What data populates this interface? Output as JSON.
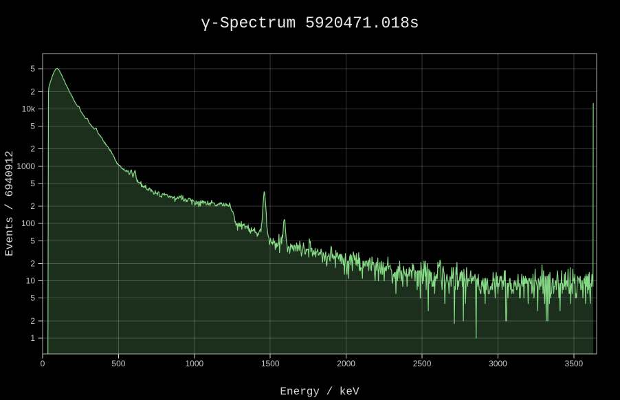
{
  "window": {
    "background": "#000000"
  },
  "chart_data": {
    "type": "area",
    "title": "γ-Spectrum 5920471.018s",
    "xlabel": "Energy / keV",
    "ylabel": "Events / 6940912",
    "x_scale": "linear",
    "y_scale": "log",
    "grid": true,
    "legend": "none",
    "xlim": [
      0,
      3650
    ],
    "ylim": [
      0.53,
      92000
    ],
    "x_ticks": [
      0,
      500,
      1000,
      1500,
      2000,
      2500,
      3000,
      3500
    ],
    "x_tick_labels": [
      "0",
      "500",
      "1000",
      "1500",
      "2000",
      "2500",
      "3000",
      "3500"
    ],
    "y_ticks": [
      1,
      2,
      5,
      10,
      20,
      50,
      100,
      200,
      500,
      1000,
      2000,
      5000,
      10000,
      20000,
      50000
    ],
    "y_tick_labels": [
      "1",
      "2",
      "5",
      "10",
      "2",
      "5",
      "100",
      "2",
      "5",
      "1000",
      "2",
      "5",
      "10k",
      "2",
      "5"
    ],
    "series": [
      {
        "name": "gamma-spectrum",
        "start_kev": 35,
        "end_kev": 3626,
        "channel_width_kev": 3.5,
        "envelope_points": [
          [
            35,
            0.53
          ],
          [
            37,
            14000
          ],
          [
            39,
            23000
          ],
          [
            44,
            25500
          ],
          [
            52,
            30000
          ],
          [
            62,
            36000
          ],
          [
            72,
            42500
          ],
          [
            82,
            47500
          ],
          [
            92,
            50500
          ],
          [
            98,
            51000
          ],
          [
            106,
            48500
          ],
          [
            116,
            43500
          ],
          [
            126,
            38500
          ],
          [
            138,
            33000
          ],
          [
            150,
            28000
          ],
          [
            164,
            23500
          ],
          [
            178,
            19800
          ],
          [
            192,
            16800
          ],
          [
            206,
            14200
          ],
          [
            222,
            11800
          ],
          [
            238,
            10200
          ],
          [
            255,
            8700
          ],
          [
            272,
            7500
          ],
          [
            290,
            6400
          ],
          [
            308,
            5600
          ],
          [
            326,
            4900
          ],
          [
            344,
            4300
          ],
          [
            364,
            3800
          ],
          [
            382,
            3350
          ],
          [
            400,
            2800
          ],
          [
            418,
            2400
          ],
          [
            436,
            2050
          ],
          [
            455,
            1700
          ],
          [
            475,
            1350
          ],
          [
            495,
            1080
          ],
          [
            515,
            950
          ],
          [
            535,
            870
          ],
          [
            558,
            790
          ],
          [
            580,
            710
          ],
          [
            600,
            640
          ],
          [
            622,
            560
          ],
          [
            645,
            490
          ],
          [
            670,
            435
          ],
          [
            700,
            395
          ],
          [
            735,
            355
          ],
          [
            772,
            325
          ],
          [
            810,
            305
          ],
          [
            845,
            288
          ],
          [
            882,
            272
          ],
          [
            918,
            258
          ],
          [
            955,
            248
          ],
          [
            992,
            240
          ],
          [
            1030,
            232
          ],
          [
            1070,
            226
          ],
          [
            1110,
            221
          ],
          [
            1150,
            217
          ],
          [
            1192,
            213
          ],
          [
            1225,
            210
          ],
          [
            1238,
            205
          ],
          [
            1252,
            150
          ],
          [
            1268,
            115
          ],
          [
            1290,
            100
          ],
          [
            1315,
            90
          ],
          [
            1345,
            82
          ],
          [
            1380,
            75
          ],
          [
            1415,
            71
          ],
          [
            1448,
            68
          ],
          [
            1470,
            60
          ],
          [
            1495,
            54
          ],
          [
            1522,
            50
          ],
          [
            1550,
            47
          ],
          [
            1580,
            44
          ],
          [
            1612,
            42
          ],
          [
            1645,
            40
          ],
          [
            1680,
            38
          ],
          [
            1720,
            35
          ],
          [
            1765,
            32.5
          ],
          [
            1815,
            30
          ],
          [
            1870,
            27.5
          ],
          [
            1930,
            25
          ],
          [
            1995,
            23
          ],
          [
            2060,
            21
          ],
          [
            2130,
            19
          ],
          [
            2205,
            17.3
          ],
          [
            2280,
            15.8
          ],
          [
            2360,
            14.4
          ],
          [
            2440,
            13.2
          ],
          [
            2520,
            12.2
          ],
          [
            2600,
            11.4
          ],
          [
            2680,
            10.6
          ],
          [
            2760,
            10
          ],
          [
            2845,
            9.6
          ],
          [
            2935,
            9.3
          ],
          [
            3030,
            9.1
          ],
          [
            3130,
            9
          ],
          [
            3235,
            8.9
          ],
          [
            3340,
            8.9
          ],
          [
            3450,
            9
          ],
          [
            3560,
            9.1
          ],
          [
            3626,
            9.2
          ]
        ],
        "peaks": [
          {
            "center": 239,
            "sigma": 5,
            "amplitude": 900
          },
          {
            "center": 295,
            "sigma": 5,
            "amplitude": 650
          },
          {
            "center": 352,
            "sigma": 5,
            "amplitude": 520
          },
          {
            "center": 583,
            "sigma": 5,
            "amplitude": 160
          },
          {
            "center": 609,
            "sigma": 5,
            "amplitude": 270
          },
          {
            "center": 911,
            "sigma": 6,
            "amplitude": 48
          },
          {
            "center": 969,
            "sigma": 6,
            "amplitude": 22
          },
          {
            "center": 1120,
            "sigma": 7,
            "amplitude": 30
          },
          {
            "center": 1461,
            "sigma": 8,
            "amplitude": 280
          },
          {
            "center": 1592,
            "sigma": 7,
            "amplitude": 72
          },
          {
            "center": 1764,
            "sigma": 7,
            "amplitude": 10
          },
          {
            "center": 2614,
            "sigma": 8,
            "amplitude": 9
          }
        ],
        "overflow_bin": {
          "energy_kev": 3628,
          "counts": 12500
        },
        "forced_dips": [
          [
            2542,
            3
          ],
          [
            2711,
            1.8
          ],
          [
            2857,
            1
          ],
          [
            3053,
            2
          ]
        ],
        "noise_model": "poisson",
        "noise_seed": 13
      }
    ]
  },
  "colors": {
    "background": "#000000",
    "plot_border": "#b0b0b0",
    "grid_line": "#ffffff",
    "grid_opacity": 0.22,
    "tick_mark": "#cfcfcf",
    "tick_label": "#c9c9c9",
    "axis_label": "#d6d6d6",
    "title": "#e8e8e8",
    "series_line": "#86da86",
    "series_fill": "#8de58d",
    "series_fill_opacity": 0.2
  }
}
